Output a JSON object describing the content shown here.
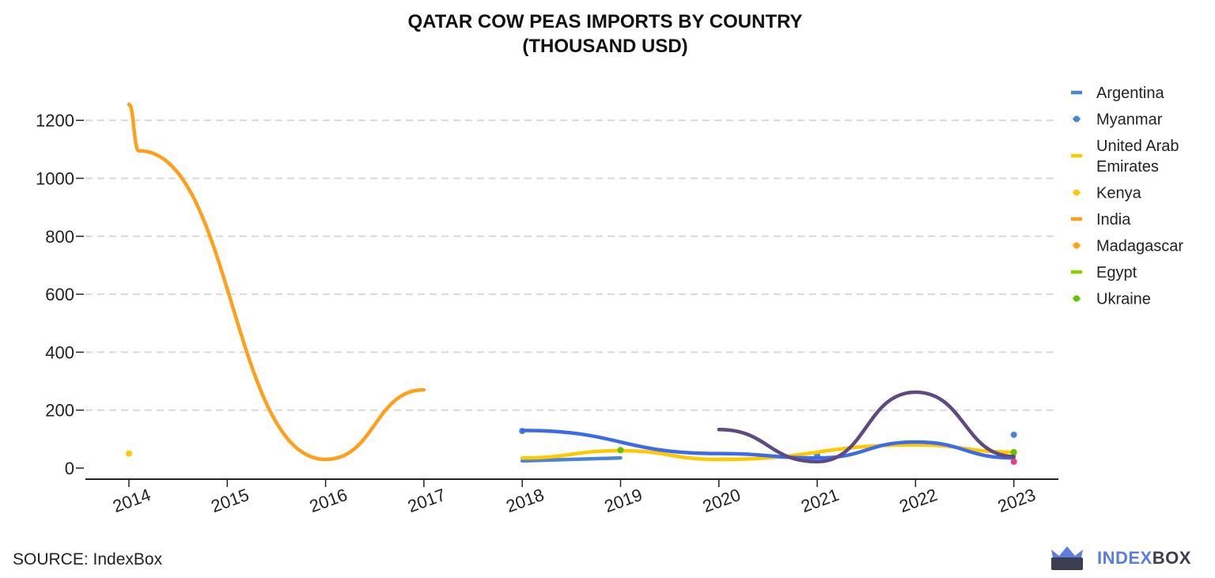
{
  "title_lines": [
    "QATAR COW PEAS IMPORTS BY COUNTRY",
    "(THOUSAND USD)"
  ],
  "source": "SOURCE: IndexBox",
  "brand": {
    "name_a": "INDEX",
    "name_b": "BOX",
    "icon": "crown-box-icon",
    "colors": {
      "a": "#5a7ee0",
      "b": "#3d3d50"
    }
  },
  "chart_data": {
    "type": "line",
    "title": "QATAR COW PEAS IMPORTS BY COUNTRY (THOUSAND USD)",
    "xlabel": "",
    "ylabel": "",
    "x": [
      2014,
      2015,
      2016,
      2017,
      2018,
      2019,
      2020,
      2021,
      2022,
      2023
    ],
    "x_ticks": [
      "2014",
      "2015",
      "2016",
      "2017",
      "2018",
      "2019",
      "2020",
      "2021",
      "2022",
      "2023"
    ],
    "y_ticks": [
      0,
      200,
      400,
      600,
      800,
      1000,
      1200
    ],
    "ylim": [
      -30,
      1270
    ],
    "grid": true,
    "legend_position": "right",
    "series": [
      {
        "name": "Argentina",
        "color": "#4a84d4",
        "style": "line",
        "points": [
          [
            2018,
            25
          ],
          [
            2019,
            35
          ]
        ]
      },
      {
        "name": "Myanmar",
        "color": "#4a84d4",
        "style": "marker",
        "points": [
          [
            2018,
            128
          ],
          [
            2021,
            43
          ],
          [
            2023,
            115
          ]
        ]
      },
      {
        "name": "United Arab Emirates",
        "color": "#ffc800",
        "style": "line",
        "points": [
          [
            2018,
            35
          ],
          [
            2019,
            60
          ],
          [
            2020,
            30
          ],
          [
            2022,
            80
          ],
          [
            2023,
            55
          ]
        ]
      },
      {
        "name": "Kenya",
        "color": "#ffc800",
        "style": "marker",
        "points": [
          [
            2014,
            50
          ]
        ]
      },
      {
        "name": "India",
        "color": "#ff9f1a",
        "style": "line",
        "points": [
          [
            2014,
            1255
          ],
          [
            2014.1,
            1095
          ],
          [
            2016,
            30
          ],
          [
            2017,
            270
          ]
        ]
      },
      {
        "name": "Madagascar",
        "color": "#ff9f1a",
        "style": "marker",
        "points": []
      },
      {
        "name": "Egypt",
        "color": "#8ccf00",
        "style": "line",
        "points": [
          [
            2023,
            50
          ]
        ]
      },
      {
        "name": "Ukraine",
        "color": "#66c100",
        "style": "marker",
        "points": [
          [
            2019,
            62
          ],
          [
            2023,
            55
          ]
        ]
      },
      {
        "name": "",
        "color": "#3b6be8",
        "style": "line",
        "points": [
          [
            2018,
            130
          ],
          [
            2020,
            50
          ],
          [
            2021,
            35
          ],
          [
            2022,
            90
          ],
          [
            2023,
            35
          ]
        ]
      },
      {
        "name": "",
        "color": "#5e4a80",
        "style": "line",
        "points": [
          [
            2020,
            133
          ],
          [
            2021,
            22
          ],
          [
            2022,
            262
          ],
          [
            2023,
            40
          ]
        ]
      },
      {
        "name": "",
        "color": "#e0407f",
        "style": "marker",
        "points": [
          [
            2023,
            22
          ]
        ]
      }
    ]
  }
}
